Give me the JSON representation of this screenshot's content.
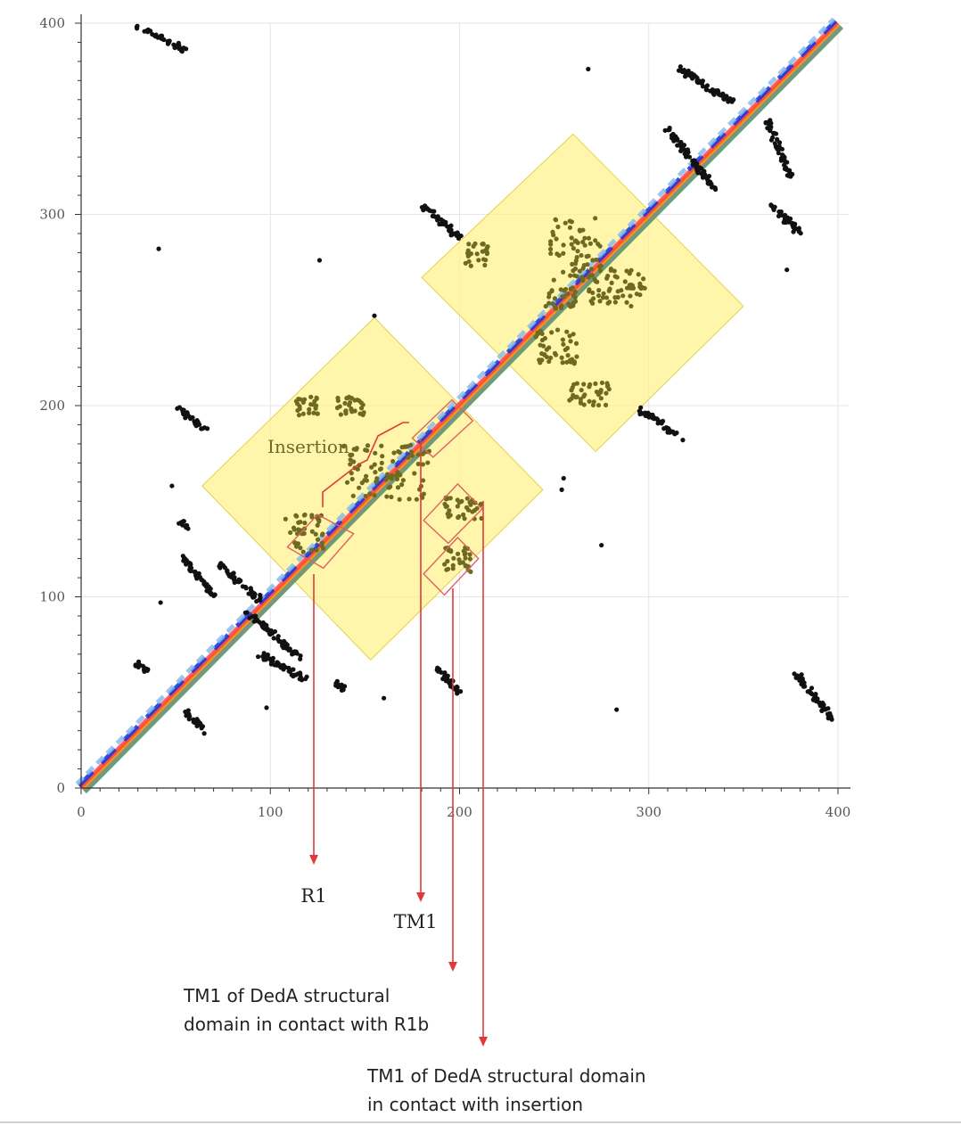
{
  "chart_data": {
    "type": "scatter",
    "title": "",
    "xlabel": "",
    "ylabel": "",
    "xlim": [
      0,
      400
    ],
    "ylim": [
      0,
      400
    ],
    "grid": true,
    "x_ticks": [
      0,
      100,
      200,
      300,
      400
    ],
    "y_ticks": [
      0,
      100,
      200,
      300,
      400
    ],
    "x_tick_labels": [
      "0",
      "100",
      "200",
      "300",
      "400"
    ],
    "y_tick_labels": [
      "0",
      "100",
      "200",
      "300",
      "400"
    ],
    "diagonal_colors": [
      "#00cc33",
      "#888888",
      "#ff9900",
      "#ff4444",
      "#1133dd",
      "#88bbee"
    ],
    "point_colors": {
      "contact": "#111111",
      "highlighted": "#6f6a22"
    },
    "domain_colors": {
      "fill": "#fff38c",
      "edge": "#e2d24a",
      "box": "#e06060",
      "arrow": "#e03a3a"
    },
    "contact_clusters": [
      {
        "x": [
          30,
          55
        ],
        "y": [
          386,
          398
        ]
      },
      {
        "x": [
          50,
          66
        ],
        "y": [
          188,
          199
        ]
      },
      {
        "x": [
          52,
          56
        ],
        "y": [
          136,
          140
        ]
      },
      {
        "x": [
          55,
          70
        ],
        "y": [
          100,
          120
        ]
      },
      {
        "x": [
          73,
          95
        ],
        "y": [
          98,
          117
        ]
      },
      {
        "x": [
          88,
          115
        ],
        "y": [
          68,
          92
        ]
      },
      {
        "x": [
          95,
          120
        ],
        "y": [
          56,
          70
        ]
      },
      {
        "x": [
          135,
          140
        ],
        "y": [
          51,
          55
        ]
      },
      {
        "x": [
          180,
          200
        ],
        "y": [
          288,
          305
        ]
      },
      {
        "x": [
          188,
          200
        ],
        "y": [
          50,
          63
        ]
      },
      {
        "x": [
          295,
          315
        ],
        "y": [
          185,
          198
        ]
      },
      {
        "x": [
          315,
          345
        ],
        "y": [
          358,
          377
        ]
      },
      {
        "x": [
          310,
          335
        ],
        "y": [
          313,
          345
        ]
      },
      {
        "x": [
          362,
          375
        ],
        "y": [
          320,
          350
        ]
      },
      {
        "x": [
          365,
          380
        ],
        "y": [
          290,
          305
        ]
      },
      {
        "x": [
          378,
          398
        ],
        "y": [
          35,
          60
        ]
      },
      {
        "x": [
          55,
          65
        ],
        "y": [
          30,
          40
        ]
      },
      {
        "x": [
          30,
          35
        ],
        "y": [
          60,
          65
        ]
      }
    ],
    "contact_singles": [
      {
        "x": 41,
        "y": 282
      },
      {
        "x": 126,
        "y": 276
      },
      {
        "x": 155,
        "y": 247
      },
      {
        "x": 48,
        "y": 158
      },
      {
        "x": 42,
        "y": 97
      },
      {
        "x": 98,
        "y": 42
      },
      {
        "x": 160,
        "y": 47
      },
      {
        "x": 283,
        "y": 41
      },
      {
        "x": 275,
        "y": 127
      },
      {
        "x": 254,
        "y": 156
      },
      {
        "x": 268,
        "y": 376
      },
      {
        "x": 373,
        "y": 271
      },
      {
        "x": 310,
        "y": 186
      },
      {
        "x": 318,
        "y": 182
      },
      {
        "x": 255,
        "y": 162
      }
    ],
    "highlighted_clusters": [
      {
        "x": [
          113,
          125
        ],
        "y": [
          195,
          205
        ]
      },
      {
        "x": [
          135,
          150
        ],
        "y": [
          195,
          205
        ]
      },
      {
        "x": [
          192,
          212
        ],
        "y": [
          140,
          152
        ]
      },
      {
        "x": [
          192,
          206
        ],
        "y": [
          113,
          126
        ]
      },
      {
        "x": [
          108,
          128
        ],
        "y": [
          123,
          143
        ]
      },
      {
        "x": [
          138,
          185
        ],
        "y": [
          150,
          180
        ]
      },
      {
        "x": [
          258,
          280
        ],
        "y": [
          200,
          212
        ]
      },
      {
        "x": [
          203,
          215
        ],
        "y": [
          273,
          285
        ]
      },
      {
        "x": [
          248,
          275
        ],
        "y": [
          265,
          298
        ]
      },
      {
        "x": [
          268,
          298
        ],
        "y": [
          250,
          272
        ]
      },
      {
        "x": [
          240,
          262
        ],
        "y": [
          222,
          240
        ]
      },
      {
        "x": [
          245,
          262
        ],
        "y": [
          250,
          262
        ]
      }
    ],
    "domain_squares": [
      {
        "corners": [
          [
            64,
            158
          ],
          [
            155,
            246
          ],
          [
            244,
            156
          ],
          [
            153,
            67
          ]
        ]
      },
      {
        "corners": [
          [
            180,
            267
          ],
          [
            260,
            342
          ],
          [
            350,
            252
          ],
          [
            272,
            176
          ]
        ]
      }
    ],
    "red_boxes": [
      {
        "corners": [
          [
            109,
            126
          ],
          [
            125,
            143
          ],
          [
            144,
            133
          ],
          [
            128,
            115
          ]
        ]
      },
      {
        "corners": [
          [
            175,
            183
          ],
          [
            196,
            203
          ],
          [
            207,
            192
          ],
          [
            186,
            173
          ]
        ]
      },
      {
        "corners": [
          [
            181,
            140
          ],
          [
            199,
            159
          ],
          [
            212,
            146
          ],
          [
            194,
            128
          ]
        ]
      },
      {
        "corners": [
          [
            181,
            112
          ],
          [
            199,
            131
          ],
          [
            210,
            120
          ],
          [
            192,
            101
          ]
        ]
      }
    ],
    "annotations": {
      "insertion": "Insertion",
      "r1": "R1",
      "tm1": "TM1",
      "tm1_r1b_line1": "TM1 of DedA structural",
      "tm1_r1b_line2": "domain in contact with R1b",
      "tm1_ins_line1": "TM1 of DedA structural domain",
      "tm1_ins_line2": "in contact with insertion"
    }
  }
}
